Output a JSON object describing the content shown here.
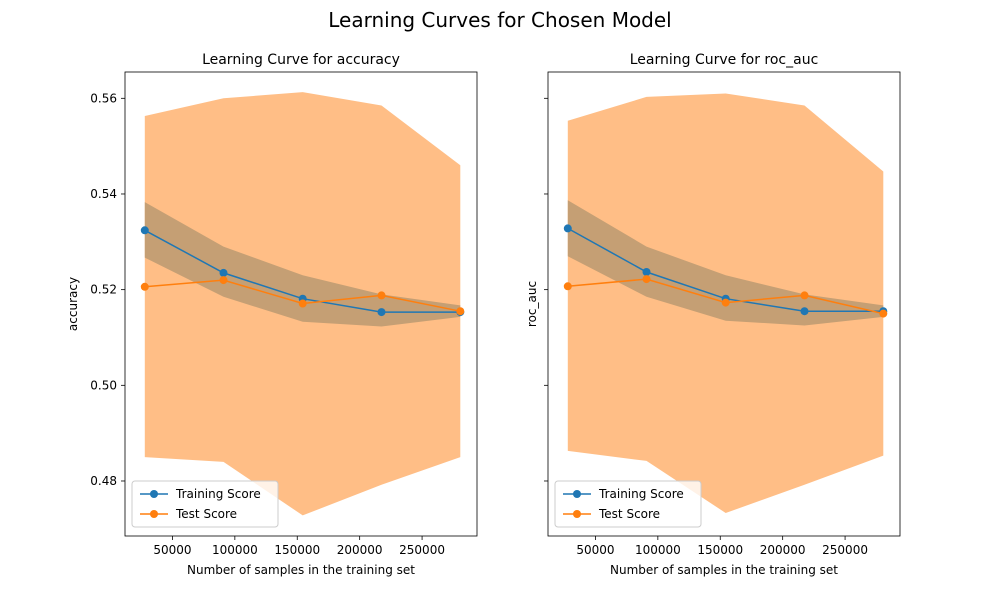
{
  "figure": {
    "suptitle": "Learning Curves for Chosen Model"
  },
  "colors": {
    "training": "#1f77b4",
    "test": "#ff7f0e",
    "test_band": "#ffbe86",
    "train_band": "#c59f74"
  },
  "chart_data": [
    {
      "type": "line",
      "title": "Learning Curve for accuracy",
      "xlabel": "Number of samples in the training set",
      "ylabel": "accuracy",
      "xlim": [
        12000,
        294000
      ],
      "ylim": [
        0.4685,
        0.5655
      ],
      "xticks": [
        50000,
        100000,
        150000,
        200000,
        250000
      ],
      "xtick_labels": [
        "50000",
        "100000",
        "150000",
        "200000",
        "250000"
      ],
      "yticks": [
        0.48,
        0.5,
        0.52,
        0.54,
        0.56
      ],
      "ytick_labels": [
        "0.48",
        "0.50",
        "0.52",
        "0.54",
        "0.56"
      ],
      "grid": false,
      "legend_position": "lower-left",
      "x": [
        27900,
        90900,
        154400,
        217500,
        280600
      ],
      "series": [
        {
          "name": "Training Score",
          "color": "#1f77b4",
          "values": [
            0.5324,
            0.5235,
            0.5181,
            0.5153,
            0.5153
          ],
          "band_upper": [
            0.5383,
            0.529,
            0.523,
            0.519,
            0.5167
          ],
          "band_lower": [
            0.5267,
            0.5185,
            0.5133,
            0.5123,
            0.5143
          ]
        },
        {
          "name": "Test Score",
          "color": "#ff7f0e",
          "values": [
            0.5206,
            0.522,
            0.5171,
            0.5188,
            0.5155
          ],
          "band_upper": [
            0.5563,
            0.56,
            0.5613,
            0.5585,
            0.546
          ],
          "band_lower": [
            0.485,
            0.484,
            0.4728,
            0.4792,
            0.485
          ]
        }
      ]
    },
    {
      "type": "line",
      "title": "Learning Curve for roc_auc",
      "xlabel": "Number of samples in the training set",
      "ylabel": "roc_auc",
      "xlim": [
        12000,
        294000
      ],
      "ylim": [
        0.4685,
        0.5655
      ],
      "xticks": [
        50000,
        100000,
        150000,
        200000,
        250000
      ],
      "xtick_labels": [
        "50000",
        "100000",
        "150000",
        "200000",
        "250000"
      ],
      "yticks": [
        0.48,
        0.5,
        0.52,
        0.54,
        0.56
      ],
      "ytick_labels": [],
      "grid": false,
      "legend_position": "lower-left",
      "x": [
        27900,
        90900,
        154400,
        217500,
        280600
      ],
      "series": [
        {
          "name": "Training Score",
          "color": "#1f77b4",
          "values": [
            0.5328,
            0.5237,
            0.5181,
            0.5155,
            0.5155
          ],
          "band_upper": [
            0.5387,
            0.529,
            0.523,
            0.519,
            0.5167
          ],
          "band_lower": [
            0.527,
            0.5185,
            0.5135,
            0.5125,
            0.5143
          ]
        },
        {
          "name": "Test Score",
          "color": "#ff7f0e",
          "values": [
            0.5207,
            0.5222,
            0.5173,
            0.5188,
            0.515
          ],
          "band_upper": [
            0.5553,
            0.5603,
            0.561,
            0.5585,
            0.5447
          ],
          "band_lower": [
            0.4863,
            0.4842,
            0.4733,
            0.4792,
            0.4853
          ]
        }
      ]
    }
  ]
}
